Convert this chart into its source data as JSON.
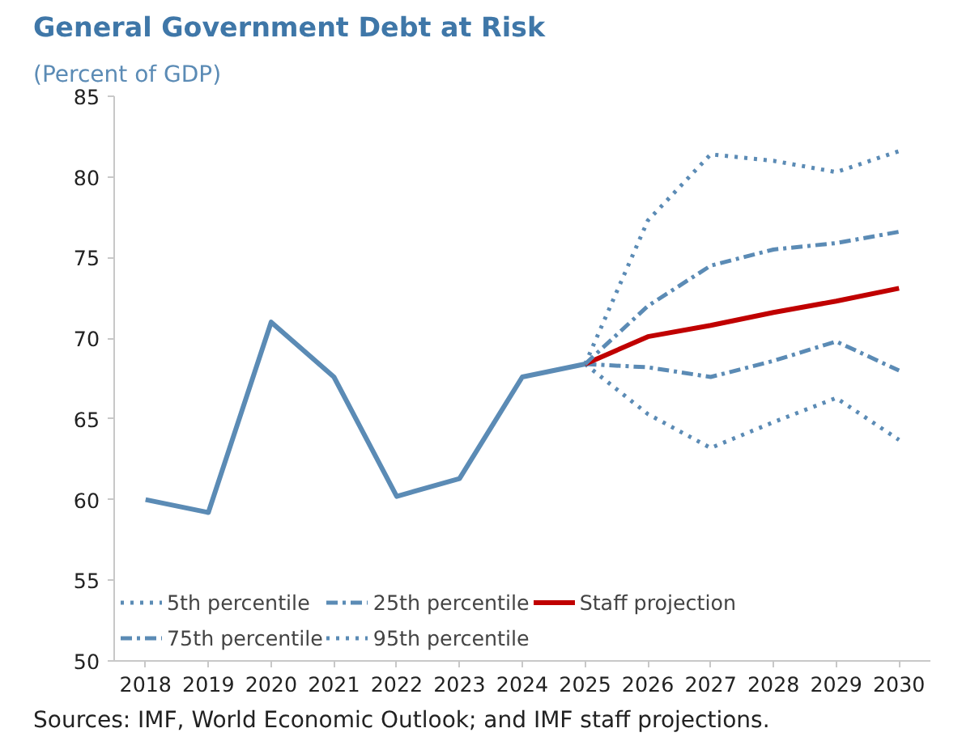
{
  "chart_data": {
    "type": "line",
    "title": "General Government Debt at Risk",
    "subtitle": "(Percent of GDP)",
    "categories": [
      "2018",
      "2019",
      "2020",
      "2021",
      "2022",
      "2023",
      "2024",
      "2025",
      "2026",
      "2027",
      "2028",
      "2029",
      "2030"
    ],
    "series": [
      {
        "color": "#5b8bb5",
        "line_style": "solid",
        "values": [
          60.0,
          59.2,
          71.0,
          67.6,
          60.2,
          61.3,
          67.6,
          68.4,
          null,
          null,
          null,
          null,
          null
        ]
      },
      {
        "name": "5th percentile",
        "color": "#5b8bb5",
        "line_style": "dotted",
        "values": [
          null,
          null,
          null,
          null,
          null,
          null,
          null,
          68.4,
          65.3,
          63.2,
          64.8,
          66.3,
          63.7
        ]
      },
      {
        "name": "25th percentile",
        "color": "#5b8bb5",
        "line_style": "dashdot",
        "values": [
          null,
          null,
          null,
          null,
          null,
          null,
          null,
          68.4,
          68.2,
          67.6,
          68.6,
          69.8,
          68.0
        ]
      },
      {
        "name": "Staff projection",
        "color": "#c00000",
        "line_style": "solid",
        "values": [
          null,
          null,
          null,
          null,
          null,
          null,
          null,
          68.4,
          70.1,
          70.8,
          71.6,
          72.3,
          73.1
        ]
      },
      {
        "name": "75th percentile",
        "color": "#5b8bb5",
        "line_style": "dashdot",
        "values": [
          null,
          null,
          null,
          null,
          null,
          null,
          null,
          68.4,
          72.0,
          74.5,
          75.5,
          75.9,
          76.6
        ]
      },
      {
        "name": "95th percentile",
        "color": "#5b8bb5",
        "line_style": "dotted",
        "values": [
          null,
          null,
          null,
          null,
          null,
          null,
          null,
          68.4,
          77.3,
          81.4,
          81.0,
          80.3,
          81.6
        ]
      }
    ],
    "ylim": [
      50,
      85
    ],
    "yticks": [
      50,
      55,
      60,
      65,
      70,
      75,
      80,
      85
    ],
    "grid": false,
    "legend": "bottom",
    "annotations": [
      "Sources: IMF, World Economic Outlook; and IMF staff projections."
    ]
  }
}
